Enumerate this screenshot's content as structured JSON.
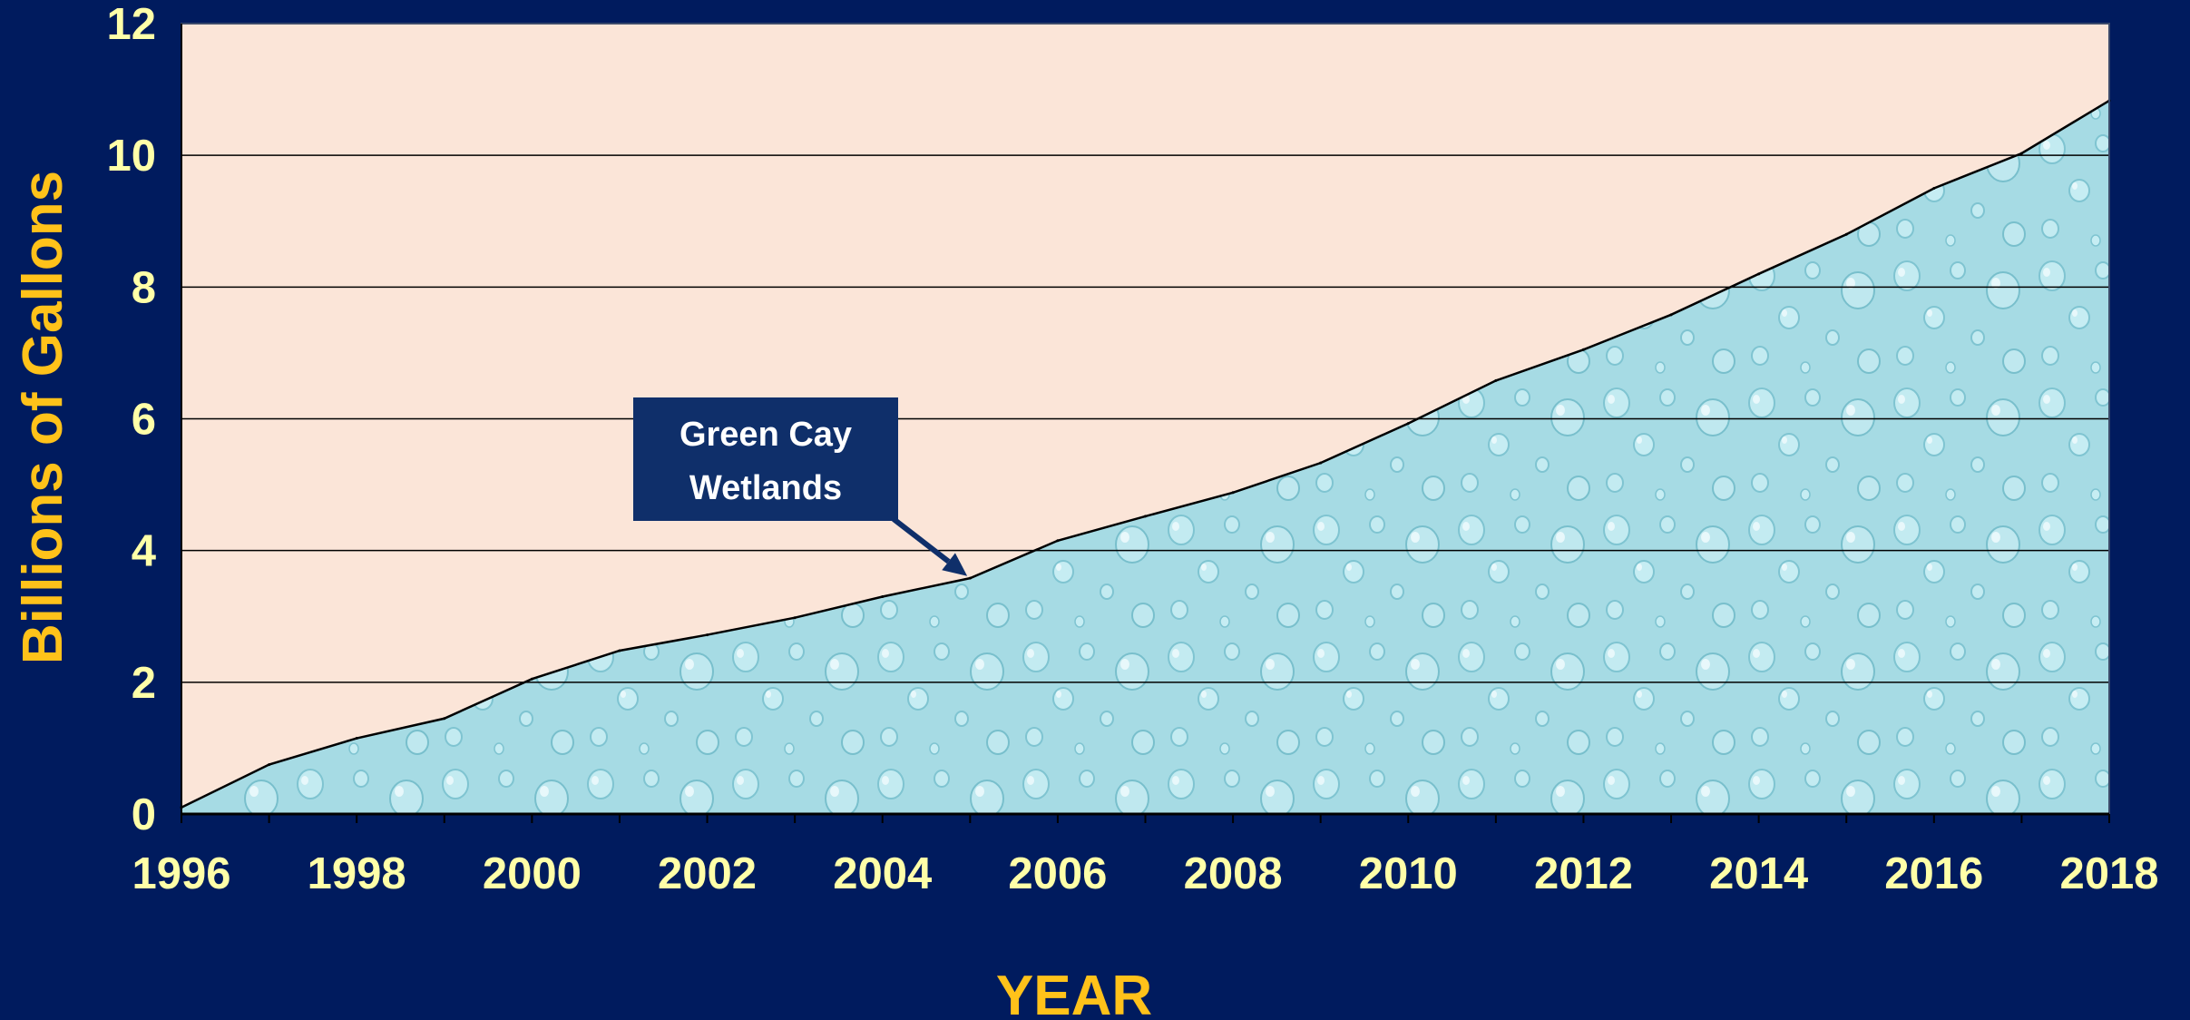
{
  "chart_data": {
    "type": "area",
    "title": "",
    "xlabel": "YEAR",
    "ylabel": "Billions of Gallons",
    "xlim": [
      1996,
      2018
    ],
    "ylim": [
      0,
      12
    ],
    "x_ticks": [
      "1996",
      "1998",
      "2000",
      "2002",
      "2004",
      "2006",
      "2008",
      "2010",
      "2012",
      "2014",
      "2016",
      "2018"
    ],
    "y_ticks": [
      "0",
      "2",
      "4",
      "6",
      "8",
      "10",
      "12"
    ],
    "grid": true,
    "legend": "none",
    "series": [
      {
        "x": [
          1996,
          1997,
          1998,
          1999,
          2000,
          2001,
          2002,
          2003,
          2004,
          2005,
          2006,
          2007,
          2008,
          2009,
          2010,
          2011,
          2012,
          2013,
          2014,
          2015,
          2016,
          2017,
          2018
        ],
        "values": [
          0.1,
          0.75,
          1.15,
          1.45,
          2.05,
          2.48,
          2.72,
          2.98,
          3.3,
          3.58,
          4.15,
          4.52,
          4.88,
          5.33,
          5.93,
          6.58,
          7.05,
          7.58,
          8.2,
          8.8,
          9.5,
          10.03,
          10.83
        ]
      }
    ],
    "annotations": [
      {
        "lines": [
          "Green Cay",
          "Wetlands"
        ],
        "x": 2005,
        "y": 3.58
      }
    ]
  },
  "colors": {
    "background": "#001b5e",
    "plot_background": "#fbe5d8",
    "area_fill": "#a6dbe4",
    "line": "#000000",
    "tick_labels": "#ffffa8",
    "axis_titles": "#ffc21a",
    "annotation_box": "#0f2f6a"
  }
}
